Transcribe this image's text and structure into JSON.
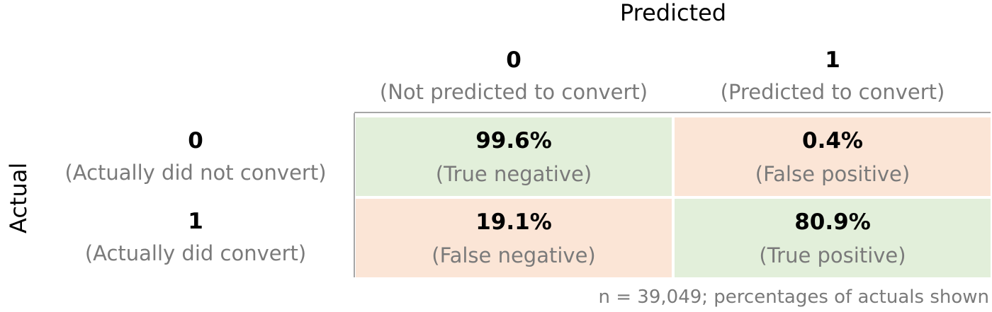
{
  "titles": {
    "predicted": "Predicted",
    "actual": "Actual"
  },
  "footnote": "n = 39,049; percentages of actuals shown",
  "colors": {
    "correct": "#e2efda",
    "incorrect": "#fbe5d6",
    "axis_line": "#a6a6a6",
    "secondary_text": "#7a7a7a"
  },
  "chart_data": {
    "type": "table",
    "title": "",
    "xlabel": "Predicted",
    "ylabel": "Actual",
    "columns": [
      {
        "code": "0",
        "label": "(Not predicted to convert)"
      },
      {
        "code": "1",
        "label": "(Predicted to convert)"
      }
    ],
    "rows": [
      {
        "code": "0",
        "label": "(Actually did not convert)",
        "cells": [
          {
            "value": "99.6%",
            "label": "(True negative)",
            "kind": "correct"
          },
          {
            "value": "0.4%",
            "label": "(False positive)",
            "kind": "incorrect"
          }
        ]
      },
      {
        "code": "1",
        "label": "(Actually did convert)",
        "cells": [
          {
            "value": "19.1%",
            "label": "(False negative)",
            "kind": "incorrect"
          },
          {
            "value": "80.9%",
            "label": "(True positive)",
            "kind": "correct"
          }
        ]
      }
    ]
  }
}
